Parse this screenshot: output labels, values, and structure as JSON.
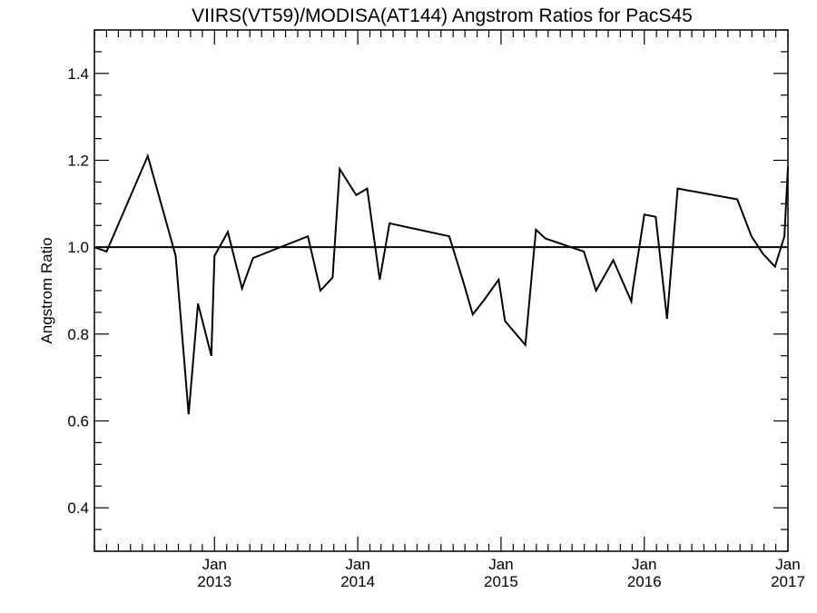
{
  "chart_data": {
    "type": "line",
    "title": "VIIRS(VT59)/MODISA(AT144)  Angstrom Ratios for PacS45",
    "xlabel": "",
    "ylabel": "Angstrom Ratio",
    "xlim": [
      "2012-03-01",
      "2017-01-01"
    ],
    "ylim": [
      0.3,
      1.5
    ],
    "y_major_ticks": [
      0.4,
      0.6,
      0.8,
      1.0,
      1.2,
      1.4
    ],
    "y_tick_labels": [
      "0.4",
      "0.6",
      "0.8",
      "1.0",
      "1.2",
      "1.4"
    ],
    "x_tick_labels": [
      {
        "date": "2013-01-01",
        "month": "Jan",
        "year": "2013"
      },
      {
        "date": "2014-01-01",
        "month": "Jan",
        "year": "2014"
      },
      {
        "date": "2015-01-01",
        "month": "Jan",
        "year": "2015"
      },
      {
        "date": "2016-01-01",
        "month": "Jan",
        "year": "2016"
      },
      {
        "date": "2017-01-01",
        "month": "Jan",
        "year": "2017"
      }
    ],
    "grid": false,
    "reference_line": 1.0,
    "series": [
      {
        "x": [
          "2012-03-01",
          "2012-04-01",
          "2012-07-15",
          "2012-09-24",
          "2012-10-27",
          "2012-11-20",
          "2012-12-24",
          "2013-01-01",
          "2013-02-04",
          "2013-03-12",
          "2013-04-09",
          "2013-08-27",
          "2013-09-28",
          "2013-10-29",
          "2013-11-16",
          "2013-12-28",
          "2014-01-25",
          "2014-02-26",
          "2014-03-23",
          "2014-08-22",
          "2014-09-27",
          "2014-10-21",
          "2014-11-20",
          "2014-12-26",
          "2015-01-11",
          "2015-03-04",
          "2015-03-31",
          "2015-04-24",
          "2015-07-31",
          "2015-08-31",
          "2015-10-14",
          "2015-11-29",
          "2015-12-02",
          "2016-01-01",
          "2016-01-30",
          "2016-02-28",
          "2016-03-26",
          "2016-08-25",
          "2016-09-30",
          "2016-10-29",
          "2016-11-29",
          "2016-12-23",
          "2017-01-01"
        ],
        "y": [
          1.0,
          0.99,
          1.21,
          0.98,
          0.615,
          0.87,
          0.75,
          0.98,
          1.035,
          0.905,
          0.975,
          1.025,
          0.9,
          0.93,
          1.18,
          1.12,
          1.135,
          0.925,
          1.055,
          1.025,
          0.92,
          0.845,
          0.88,
          0.925,
          0.83,
          0.775,
          1.04,
          1.02,
          0.99,
          0.9,
          0.97,
          0.875,
          0.9,
          1.075,
          1.07,
          0.835,
          1.135,
          1.11,
          1.025,
          0.985,
          0.955,
          1.025,
          1.185
        ]
      }
    ]
  }
}
